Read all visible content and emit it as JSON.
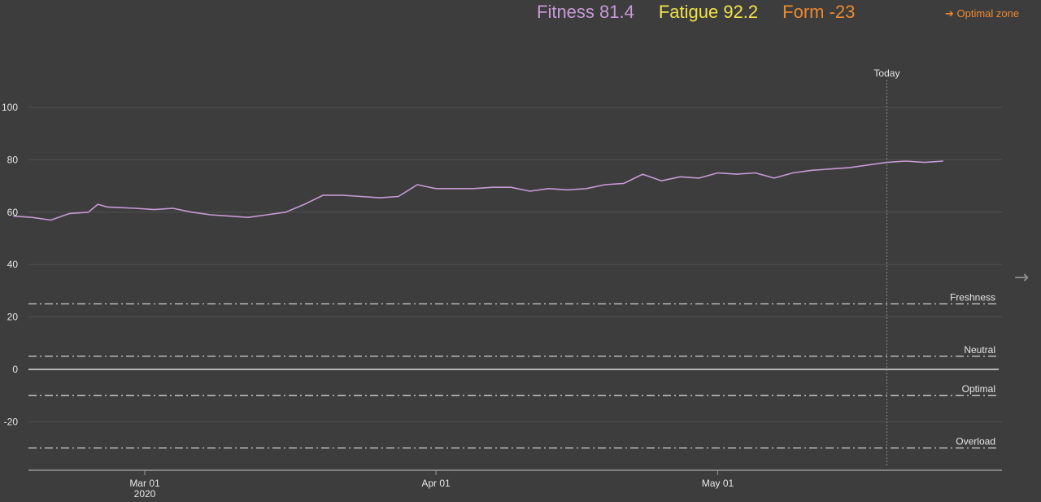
{
  "header": {
    "fitness_label": "Fitness 81.4",
    "fatigue_label": "Fatigue 92.2",
    "form_label": "Form -23",
    "optimal_zone_label": "➔ Optimal zone"
  },
  "colors": {
    "background": "#3d3d3d",
    "fitness": "#c79ad6",
    "fatigue": "#f0e34a",
    "form": "#ee8a2e",
    "grid": "#505050",
    "zone_line": "#cfcfcf"
  },
  "chart_data": {
    "type": "line",
    "title": "",
    "xlabel": "",
    "ylabel": "",
    "ylim": [
      -38,
      115
    ],
    "xlim": [
      "2020-02-16",
      "2020-06-01"
    ],
    "grid": true,
    "today": "2020-05-19",
    "today_label": "Today",
    "y_ticks": [
      100,
      80,
      60,
      40,
      20,
      0,
      -20
    ],
    "x_ticks": [
      {
        "date": "2020-03-01",
        "label": "Mar 01",
        "sublabel": "2020"
      },
      {
        "date": "2020-04-01",
        "label": "Apr 01",
        "sublabel": ""
      },
      {
        "date": "2020-05-01",
        "label": "May 01",
        "sublabel": ""
      }
    ],
    "zones": [
      {
        "name": "Freshness",
        "value": 25
      },
      {
        "name": "Neutral",
        "value": 5
      },
      {
        "name": "Optimal",
        "value": -10
      },
      {
        "name": "Overload",
        "value": -30
      }
    ],
    "series": [
      {
        "name": "Fitness",
        "color": "#c79ad6",
        "values": [
          [
            "2020-02-16",
            58.5
          ],
          [
            "2020-02-18",
            58
          ],
          [
            "2020-02-20",
            57
          ],
          [
            "2020-02-22",
            59.5
          ],
          [
            "2020-02-24",
            60
          ],
          [
            "2020-02-25",
            63
          ],
          [
            "2020-02-26",
            62
          ],
          [
            "2020-02-29",
            61.5
          ],
          [
            "2020-03-02",
            61
          ],
          [
            "2020-03-04",
            61.5
          ],
          [
            "2020-03-06",
            60
          ],
          [
            "2020-03-08",
            59
          ],
          [
            "2020-03-10",
            58.5
          ],
          [
            "2020-03-12",
            58
          ],
          [
            "2020-03-14",
            59
          ],
          [
            "2020-03-16",
            60
          ],
          [
            "2020-03-18",
            63
          ],
          [
            "2020-03-20",
            66.5
          ],
          [
            "2020-03-22",
            66.5
          ],
          [
            "2020-03-24",
            66
          ],
          [
            "2020-03-26",
            65.5
          ],
          [
            "2020-03-28",
            66
          ],
          [
            "2020-03-30",
            70.5
          ],
          [
            "2020-04-01",
            69
          ],
          [
            "2020-04-03",
            69
          ],
          [
            "2020-04-05",
            69
          ],
          [
            "2020-04-07",
            69.5
          ],
          [
            "2020-04-09",
            69.5
          ],
          [
            "2020-04-11",
            68
          ],
          [
            "2020-04-13",
            69
          ],
          [
            "2020-04-15",
            68.5
          ],
          [
            "2020-04-17",
            69
          ],
          [
            "2020-04-19",
            70.5
          ],
          [
            "2020-04-21",
            71
          ],
          [
            "2020-04-23",
            74.5
          ],
          [
            "2020-04-25",
            72
          ],
          [
            "2020-04-27",
            73.5
          ],
          [
            "2020-04-29",
            73
          ],
          [
            "2020-05-01",
            75
          ],
          [
            "2020-05-03",
            74.5
          ],
          [
            "2020-05-05",
            75
          ],
          [
            "2020-05-07",
            73
          ],
          [
            "2020-05-09",
            75
          ],
          [
            "2020-05-11",
            76
          ],
          [
            "2020-05-13",
            76.5
          ],
          [
            "2020-05-15",
            77
          ],
          [
            "2020-05-17",
            78
          ],
          [
            "2020-05-19",
            79
          ],
          [
            "2020-05-21",
            79.5
          ],
          [
            "2020-05-23",
            79
          ],
          [
            "2020-05-25",
            79.5
          ]
        ],
        "note_values_are_fitness_readings": "",
        "projection": []
      }
    ]
  }
}
